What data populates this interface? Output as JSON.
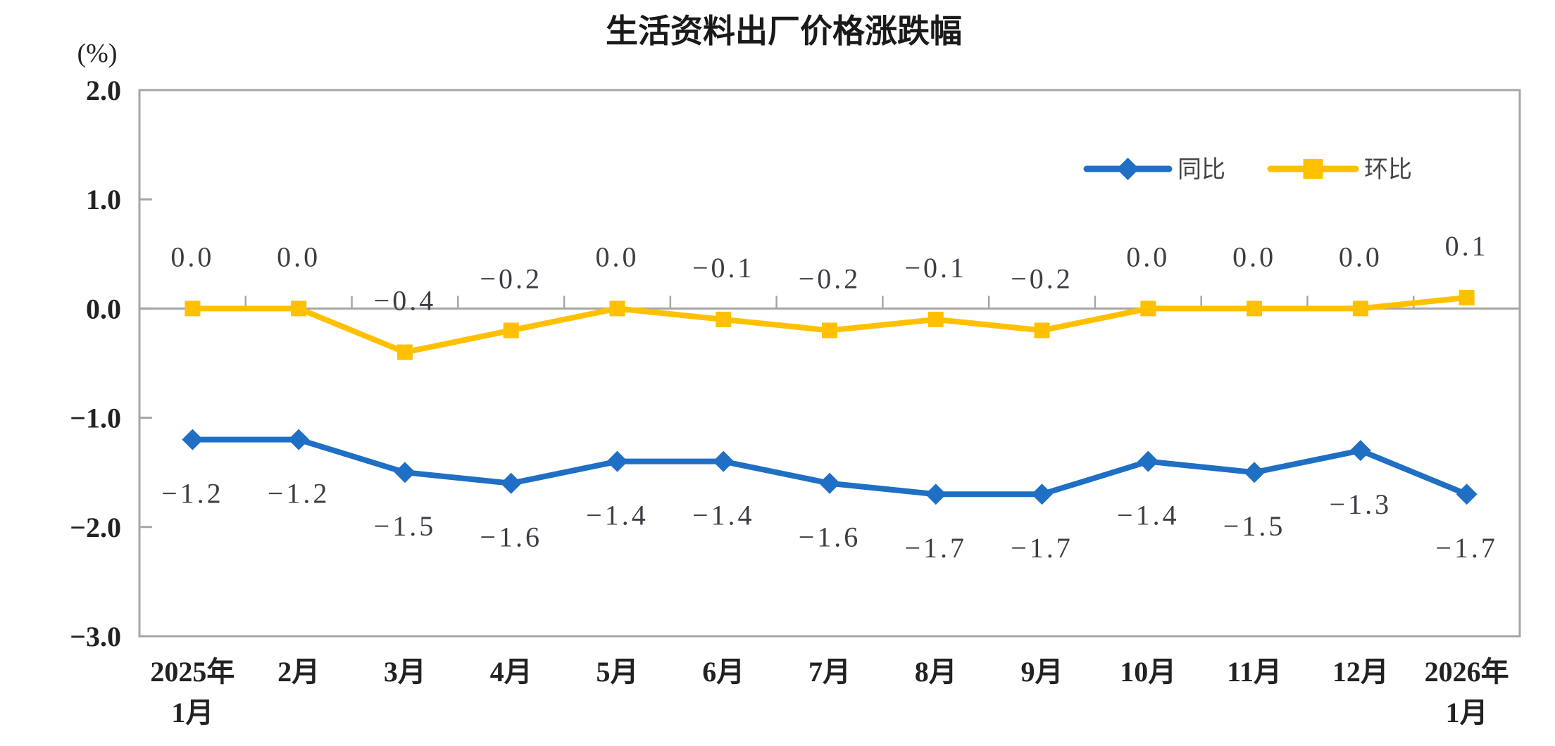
{
  "page": {
    "background_color": "#ffffff"
  },
  "chart_data": {
    "type": "line",
    "title": "生活资料出厂价格涨跌幅",
    "unit_label": "(%)",
    "categories": [
      [
        "2025年",
        "1月"
      ],
      [
        "2月"
      ],
      [
        "3月"
      ],
      [
        "4月"
      ],
      [
        "5月"
      ],
      [
        "6月"
      ],
      [
        "7月"
      ],
      [
        "8月"
      ],
      [
        "9月"
      ],
      [
        "10月"
      ],
      [
        "11月"
      ],
      [
        "12月"
      ],
      [
        "2026年",
        "1月"
      ]
    ],
    "series": [
      {
        "name": "同比",
        "color": "#1F6FC4",
        "marker": "diamond",
        "label_position": "below",
        "values": [
          -1.2,
          -1.2,
          -1.5,
          -1.6,
          -1.4,
          -1.4,
          -1.6,
          -1.7,
          -1.7,
          -1.4,
          -1.5,
          -1.3,
          -1.7
        ],
        "labels": [
          "-1.2",
          "-1.2",
          "-1.5",
          "-1.6",
          "-1.4",
          "-1.4",
          "-1.6",
          "-1.7",
          "-1.7",
          "-1.4",
          "-1.5",
          "-1.3",
          "-1.7"
        ]
      },
      {
        "name": "环比",
        "color": "#FFC000",
        "marker": "square",
        "label_position": "above",
        "values": [
          0.0,
          0.0,
          -0.4,
          -0.2,
          0.0,
          -0.1,
          -0.2,
          -0.1,
          -0.2,
          0.0,
          0.0,
          0.0,
          0.1
        ],
        "labels": [
          "0.0",
          "0.0",
          "-0.4",
          "-0.2",
          "0.0",
          "-0.1",
          "-0.2",
          "-0.1",
          "-0.2",
          "0.0",
          "0.0",
          "0.0",
          "0.1"
        ]
      }
    ],
    "y_axis": {
      "min": -3.0,
      "max": 2.0,
      "step": 1.0,
      "tick_labels": [
        "2.0",
        "1.0",
        "0.0",
        "-1.0",
        "-2.0",
        "-3.0"
      ],
      "tick_values": [
        2.0,
        1.0,
        0.0,
        -1.0,
        -2.0,
        -3.0
      ]
    },
    "legend": {
      "position": "top-right",
      "entries": [
        "同比",
        "环比"
      ]
    },
    "grid": false,
    "colors": {
      "frame": "#A6A6A6",
      "zero_axis": "#A6A6A6",
      "tick": "#A6A6A6",
      "axis_text": "#222222",
      "data_label_text": "#3d3d46"
    }
  }
}
